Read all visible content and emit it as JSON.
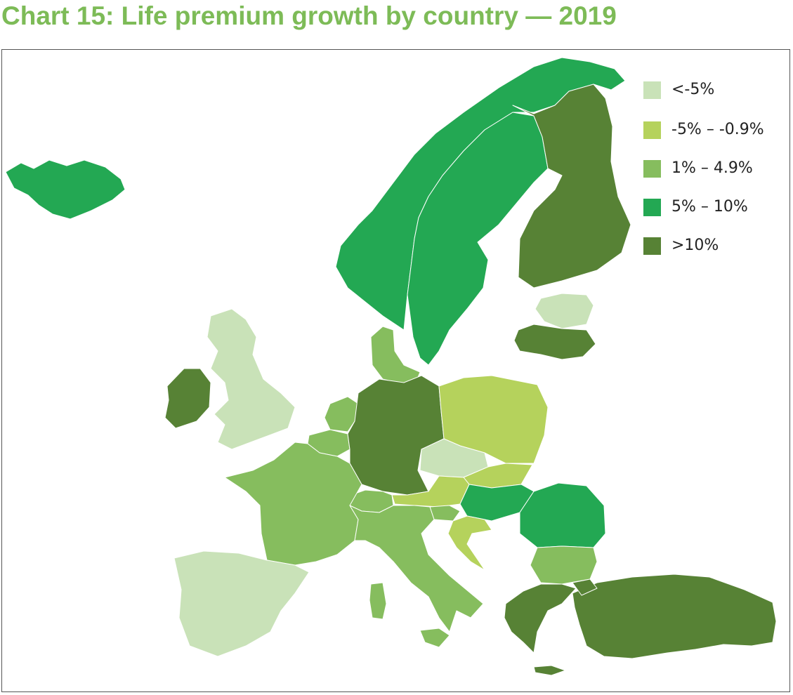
{
  "title": "Chart 15: Life premium growth by country — 2019",
  "colors": {
    "title": "#7dbb57",
    "lt_minus5": "#c9e2b8",
    "minus5_to_minus09": "#b5d25c",
    "p1_to_p49": "#86bd5e",
    "p5_to_p10": "#23a853",
    "gt10": "#578235"
  },
  "legend": [
    {
      "label": "<-5%",
      "color": "#c9e2b8"
    },
    {
      "label": "-5% – -0.9%",
      "color": "#b5d25c"
    },
    {
      "label": "1% – 4.9%",
      "color": "#86bd5e"
    },
    {
      "label": "5% – 10%",
      "color": "#23a853"
    },
    {
      "label": ">10%",
      "color": "#578235"
    }
  ]
}
